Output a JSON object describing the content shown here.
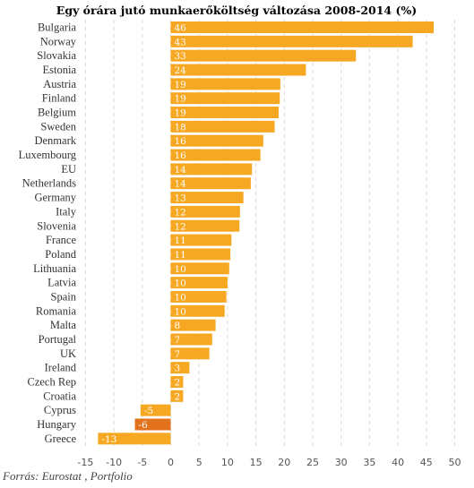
{
  "chart_data": {
    "type": "bar",
    "orientation": "horizontal",
    "title": "Egy órára jutó munkaerőköltség változása 2008-2014 (%)",
    "source": "Forrás: Eurostat , Portfolio",
    "categories": [
      "Bulgaria",
      "Norway",
      "Slovakia",
      "Estonia",
      "Austria",
      "Finland",
      "Belgium",
      "Sweden",
      "Denmark",
      "Luxembourg",
      "EU",
      "Netherlands",
      "Germany",
      "Italy",
      "Slovenia",
      "France",
      "Poland",
      "Lithuania",
      "Latvia",
      "Spain",
      "Romania",
      "Malta",
      "Portugal",
      "UK",
      "Ireland",
      "Czech Rep",
      "Croatia",
      "Cyprus",
      "Hungary",
      "Greece"
    ],
    "values": [
      46.3,
      42.6,
      32.6,
      23.8,
      19.3,
      19.2,
      19.0,
      18.3,
      16.3,
      15.8,
      14.3,
      14.1,
      12.8,
      12.2,
      12.1,
      10.7,
      10.5,
      10.3,
      10.0,
      9.8,
      9.5,
      7.9,
      7.3,
      6.8,
      3.3,
      2.2,
      2.2,
      -5.3,
      -6.3,
      -12.8
    ],
    "labels": [
      "46",
      "43",
      "33",
      "24",
      "19",
      "19",
      "19",
      "18",
      "16",
      "16",
      "14",
      "14",
      "13",
      "12",
      "12",
      "11",
      "11",
      "10",
      "10",
      "10",
      "10",
      "8",
      "7",
      "7",
      "3",
      "2",
      "2",
      "-5",
      "-6",
      "-13"
    ],
    "highlight": "Hungary",
    "xlim": [
      -15,
      50
    ],
    "xticks": [
      "-15",
      "-10",
      "-5",
      "0",
      "5",
      "10",
      "15",
      "20",
      "25",
      "30",
      "35",
      "40",
      "45",
      "50"
    ],
    "grid": "vertical dashed",
    "colors": {
      "bar": "#F7A823",
      "highlight": "#E2731C",
      "grid": "#d8d8d8"
    }
  }
}
